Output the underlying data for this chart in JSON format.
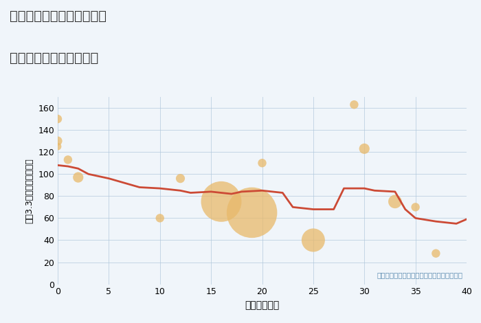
{
  "title_line1": "兵庫県西宮市今津水波町の",
  "title_line2": "築年数別中古戸建て価格",
  "xlabel": "築年数（年）",
  "ylabel": "坪（3.3㎡）単価（万円）",
  "annotation": "円の大きさは、取引のあった物件面積を示す",
  "xlim": [
    0,
    40
  ],
  "ylim": [
    0,
    170
  ],
  "xticks": [
    0,
    5,
    10,
    15,
    20,
    25,
    30,
    35,
    40
  ],
  "yticks": [
    0,
    20,
    40,
    60,
    80,
    100,
    120,
    140,
    160
  ],
  "bg_color": "#f0f5fa",
  "line_color": "#cc4a35",
  "bubble_color": "#e8b96a",
  "bubble_alpha": 0.75,
  "line_x": [
    0,
    1,
    2,
    3,
    5,
    8,
    10,
    12,
    13,
    15,
    16,
    17,
    18,
    20,
    22,
    23,
    25,
    27,
    28,
    30,
    31,
    33,
    34,
    35,
    37,
    39,
    40
  ],
  "line_y": [
    108,
    107,
    105,
    100,
    96,
    88,
    87,
    85,
    83,
    84,
    83,
    82,
    84,
    85,
    83,
    70,
    68,
    68,
    87,
    87,
    85,
    84,
    68,
    60,
    57,
    55,
    59
  ],
  "bubbles_x": [
    0,
    0,
    0,
    1,
    2,
    10,
    12,
    16,
    19,
    20,
    25,
    29,
    30,
    33,
    35,
    37
  ],
  "bubbles_y": [
    150,
    130,
    125,
    113,
    97,
    60,
    96,
    75,
    65,
    110,
    40,
    163,
    123,
    75,
    70,
    28
  ],
  "bubbles_size": [
    80,
    90,
    60,
    80,
    120,
    80,
    90,
    1800,
    2800,
    80,
    600,
    80,
    120,
    200,
    80,
    80
  ]
}
